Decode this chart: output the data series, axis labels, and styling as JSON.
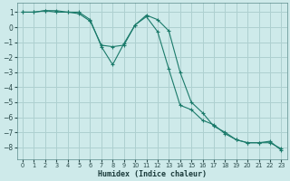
{
  "xlabel": "Humidex (Indice chaleur)",
  "background_color": "#ceeaea",
  "grid_color": "#aed0d0",
  "line_color": "#1a7a6a",
  "xlim": [
    -0.5,
    23.5
  ],
  "ylim": [
    -8.8,
    1.6
  ],
  "yticks": [
    1,
    0,
    -1,
    -2,
    -3,
    -4,
    -5,
    -6,
    -7,
    -8
  ],
  "xticks": [
    0,
    1,
    2,
    3,
    4,
    5,
    6,
    7,
    8,
    9,
    10,
    11,
    12,
    13,
    14,
    15,
    16,
    17,
    18,
    19,
    20,
    21,
    22,
    23
  ],
  "line1_x": [
    0,
    1,
    2,
    3,
    4,
    5,
    6,
    7,
    8,
    9,
    10,
    11,
    12,
    13,
    14,
    15,
    16,
    17,
    18,
    19,
    20,
    21,
    22,
    23
  ],
  "line1_y": [
    1.0,
    1.0,
    1.1,
    1.0,
    1.0,
    0.9,
    0.4,
    -1.2,
    -1.3,
    -1.2,
    0.15,
    0.7,
    -0.3,
    -2.8,
    -5.2,
    -5.5,
    -6.2,
    -6.5,
    -7.1,
    -7.5,
    -7.7,
    -7.7,
    -7.7,
    -8.1
  ],
  "line2_x": [
    0,
    1,
    2,
    3,
    4,
    5,
    6,
    7,
    8,
    9,
    10,
    11,
    12,
    13,
    14,
    15,
    16,
    17,
    18,
    19,
    20,
    21,
    22,
    23
  ],
  "line2_y": [
    1.0,
    1.0,
    1.1,
    1.1,
    1.0,
    1.0,
    0.5,
    -1.3,
    -2.5,
    -1.1,
    0.15,
    0.8,
    0.5,
    -0.25,
    -3.0,
    -5.0,
    -5.7,
    -6.6,
    -7.0,
    -7.5,
    -7.7,
    -7.7,
    -7.6,
    -8.2
  ]
}
